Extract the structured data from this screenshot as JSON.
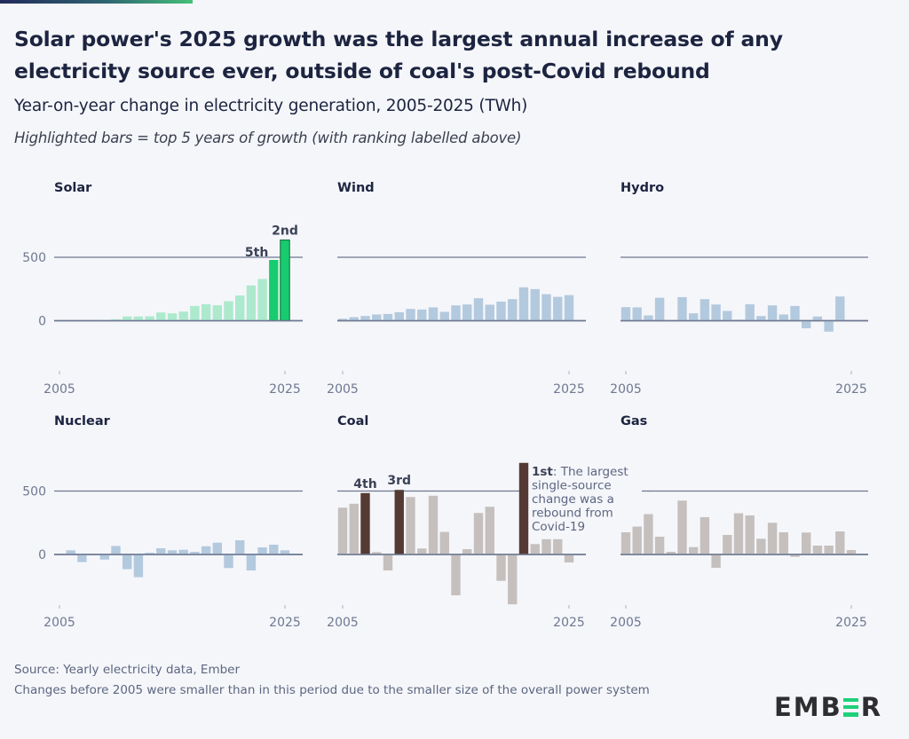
{
  "header": {
    "title": "Solar power's 2025 growth was the largest annual increase of any electricity source ever, outside of coal's post-Covid rebound",
    "subtitle": "Year-on-year change in electricity generation, 2005-2025 (TWh)",
    "note": "Highlighted bars = top 5 years of growth (with ranking labelled above)"
  },
  "footer": {
    "source": "Source: Yearly electricity data, Ember",
    "caveat": "Changes before 2005 were smaller than in this period due to the smaller size of the overall power system"
  },
  "logo": {
    "left": "EMB",
    "middle_icon": "e-bars-icon",
    "right": "R",
    "accent": "#1fd07a"
  },
  "colors": {
    "background": "#f5f6fa",
    "axis": "#6e7890",
    "solar_light": "#ade9cd",
    "solar_highlight": "#17cc6e",
    "solar_highlight_outline": "#1f7a48",
    "blue": "#b3c9de",
    "gray": "#c5c0bd",
    "coal_highlight": "#553a34",
    "label": "#3b4257"
  },
  "chart_data": {
    "type": "bar",
    "title": "Year-on-year change in electricity generation, 2005-2025 (TWh)",
    "ylabel": "TWh",
    "ylim": [
      -420,
      760
    ],
    "yticks": [
      0,
      500
    ],
    "x": [
      2005,
      2006,
      2007,
      2008,
      2009,
      2010,
      2011,
      2012,
      2013,
      2014,
      2015,
      2016,
      2017,
      2018,
      2019,
      2020,
      2021,
      2022,
      2023,
      2024,
      2025
    ],
    "xtick_labels": [
      "2005",
      "2025"
    ],
    "grid": true,
    "panels": [
      {
        "name": "Solar",
        "color": "solar_light",
        "values": [
          0,
          0,
          1,
          2,
          5,
          12,
          33,
          33,
          35,
          65,
          58,
          72,
          116,
          130,
          122,
          154,
          199,
          278,
          329,
          479,
          636
        ],
        "highlights": [
          {
            "year": 2024,
            "rank": "5th"
          },
          {
            "year": 2025,
            "rank": "2nd"
          }
        ]
      },
      {
        "name": "Wind",
        "color": "blue",
        "values": [
          16,
          28,
          37,
          49,
          53,
          67,
          93,
          88,
          105,
          70,
          121,
          128,
          177,
          126,
          151,
          170,
          263,
          249,
          209,
          188,
          202
        ],
        "highlights": []
      },
      {
        "name": "Hydro",
        "color": "blue",
        "values": [
          107,
          105,
          42,
          181,
          0,
          186,
          58,
          170,
          128,
          77,
          9,
          130,
          37,
          121,
          49,
          116,
          -60,
          33,
          -86,
          191,
          null
        ],
        "highlights": []
      },
      {
        "name": "Nuclear",
        "color": "blue",
        "values": [
          0,
          33,
          -60,
          -4,
          -40,
          67,
          -116,
          -179,
          14,
          49,
          33,
          37,
          21,
          65,
          93,
          -107,
          112,
          -126,
          56,
          77,
          33
        ],
        "highlights": []
      },
      {
        "name": "Coal",
        "color": "gray",
        "values": [
          369,
          400,
          484,
          19,
          -126,
          509,
          453,
          47,
          463,
          178,
          -322,
          42,
          327,
          376,
          -208,
          -393,
          722,
          82,
          152,
          140,
          -63
        ],
        "highlights": [
          {
            "year": 2007,
            "rank": "4th"
          },
          {
            "year": 2010,
            "rank": "3rd"
          },
          {
            "year": 2021,
            "rank": "1st",
            "annotation": ": The largest single-source change was a rebound from Covid-19"
          }
        ]
      },
      {
        "name": "Gas",
        "color": "gray",
        "values": [
          175,
          220,
          318,
          140,
          21,
          425,
          58,
          294,
          -105,
          154,
          325,
          308,
          124,
          250,
          175,
          -19,
          173,
          70,
          70,
          182,
          35
        ],
        "highlights": []
      }
    ],
    "annotation_lines": [
      "single-source",
      "change was a",
      "rebound from",
      "Covid-19"
    ],
    "annotation_first": "The largest"
  }
}
